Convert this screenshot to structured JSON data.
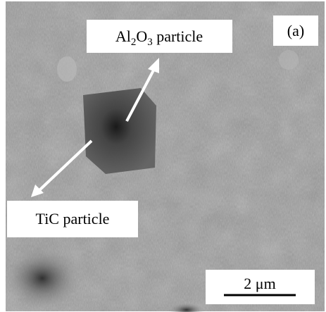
{
  "figure": {
    "panel_label": "(a)",
    "annotations": [
      {
        "parts": [
          "Al",
          "2",
          "O",
          "3",
          " particle"
        ]
      },
      {
        "parts": [
          "TiC particle"
        ]
      }
    ],
    "scale_bar": "2 μm"
  }
}
